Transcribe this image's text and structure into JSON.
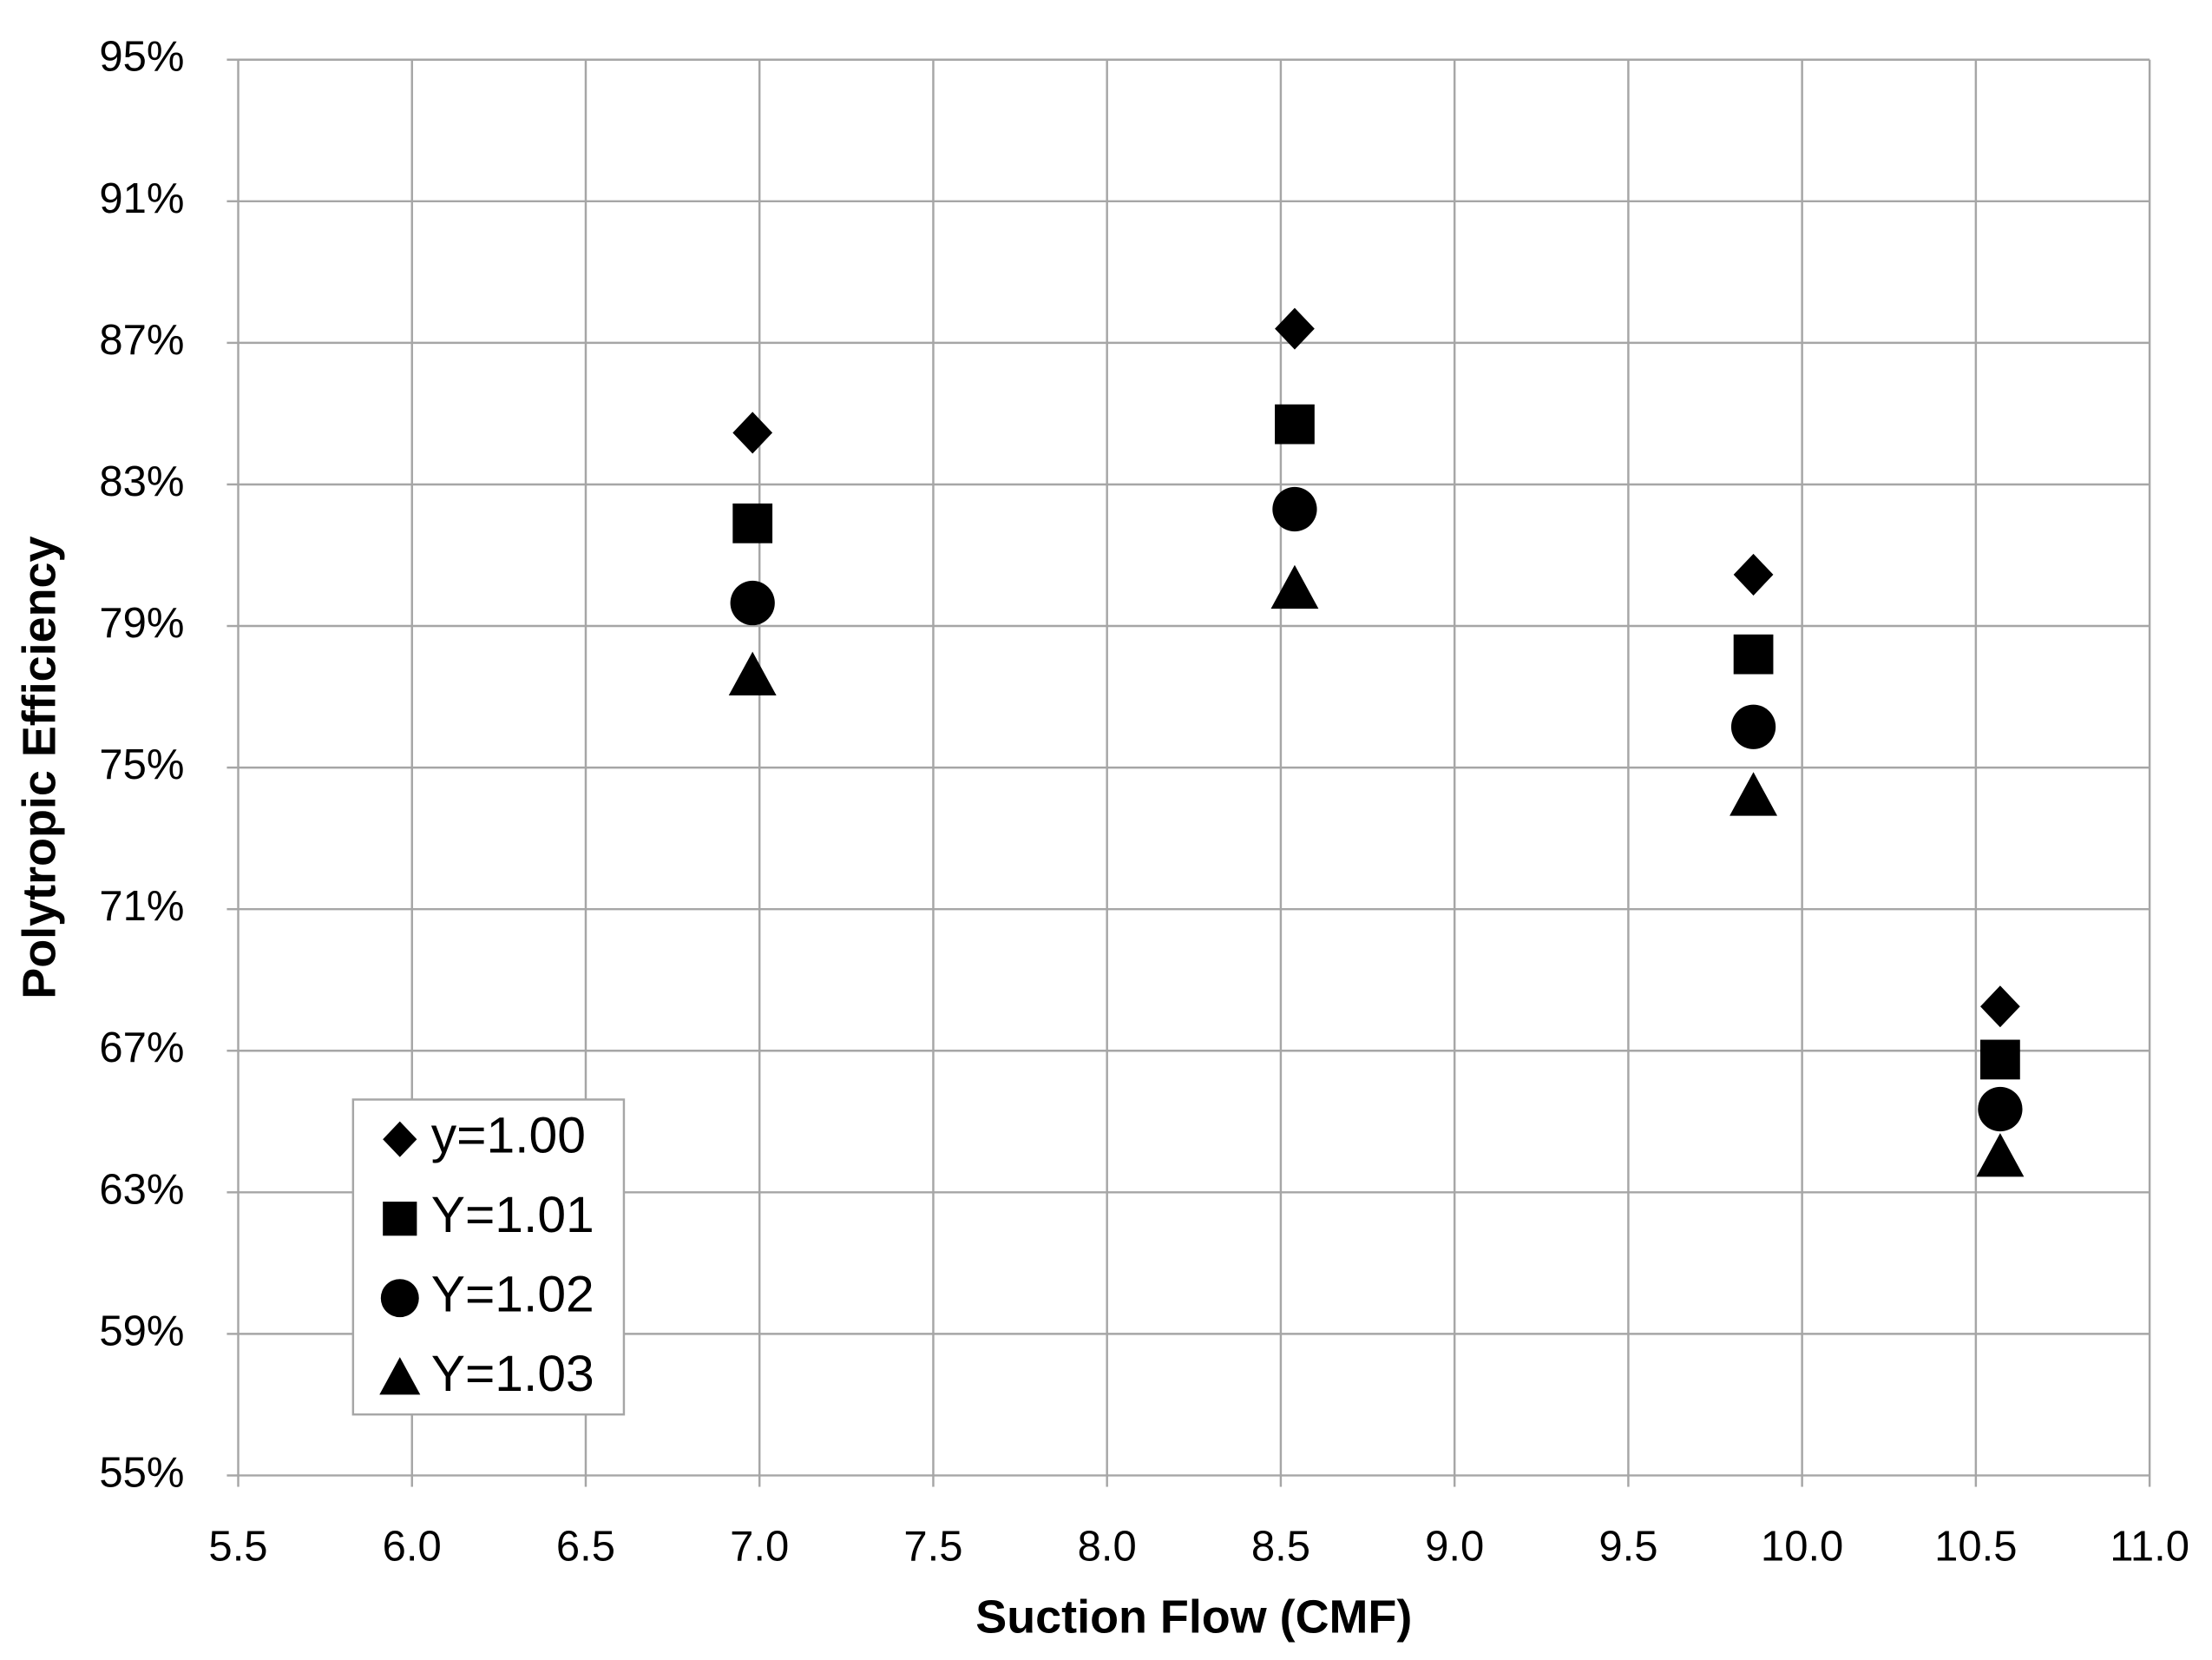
{
  "chart_data": {
    "type": "scatter",
    "x_label": "Suction Flow (CMF)",
    "y_label": "Polytropic Efficiency",
    "x": [
      6.98,
      8.54,
      9.86,
      10.57
    ],
    "series": [
      {
        "name": "y=1.00",
        "color": "#000000",
        "marker": "diamond",
        "values": [
          84.46,
          87.4,
          80.45,
          68.25
        ]
      },
      {
        "name": "Y=1.01",
        "color": "#000000",
        "marker": "square",
        "values": [
          81.9,
          84.7,
          78.2,
          66.75
        ]
      },
      {
        "name": "Y=1.02",
        "color": "#000000",
        "marker": "circle",
        "values": [
          79.65,
          82.3,
          76.15,
          65.35
        ]
      },
      {
        "name": "Y=1.03",
        "color": "#000000",
        "marker": "triangle",
        "values": [
          77.6,
          80.05,
          74.2,
          64.0
        ]
      }
    ],
    "xlim": [
      5.5,
      11.0
    ],
    "xticks": [
      5.5,
      {
        "value": 6,
        "label": "6.0"
      },
      6.5,
      {
        "value": 7,
        "label": "7.0"
      },
      7.5,
      {
        "value": 8,
        "label": "8.0"
      },
      8.5,
      {
        "value": 9,
        "label": "9.0"
      },
      9.5,
      {
        "value": 10,
        "label": "10.0"
      },
      10.5,
      {
        "value": 11,
        "label": "11.0"
      }
    ],
    "ylim": [
      55,
      95
    ],
    "yticks": [
      {
        "value": 55,
        "label": "55%"
      },
      {
        "value": 59,
        "label": "59%"
      },
      {
        "value": 63,
        "label": "63%"
      },
      {
        "value": 67,
        "label": "67%"
      },
      {
        "value": 71,
        "label": "71%"
      },
      {
        "value": 75,
        "label": "75%"
      },
      {
        "value": 79,
        "label": "79%"
      },
      {
        "value": 83,
        "label": "83%"
      },
      {
        "value": 87,
        "label": "87%"
      },
      {
        "value": 91,
        "label": "91%"
      },
      {
        "value": 95,
        "label": "95%"
      }
    ],
    "grid": true,
    "legend": "lower-left"
  }
}
